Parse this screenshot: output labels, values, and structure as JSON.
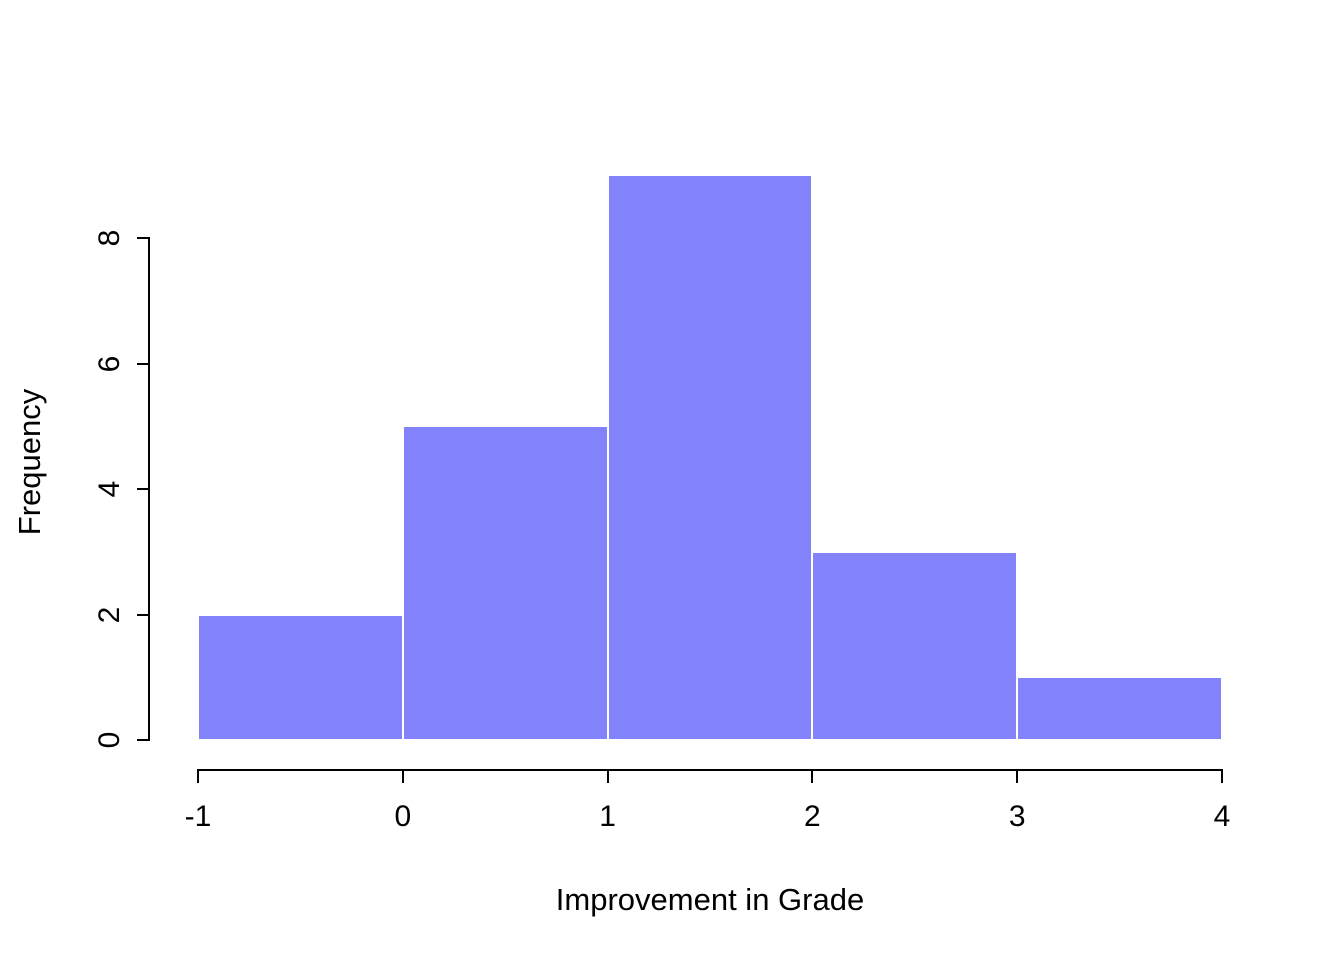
{
  "chart_data": {
    "type": "bar",
    "subtype": "histogram",
    "title": "",
    "xlabel": "Improvement in Grade",
    "ylabel": "Frequency",
    "bin_edges": [
      -1,
      0,
      1,
      2,
      3,
      4
    ],
    "bins": [
      {
        "from": -1,
        "to": 0,
        "count": 2
      },
      {
        "from": 0,
        "to": 1,
        "count": 5
      },
      {
        "from": 1,
        "to": 2,
        "count": 9
      },
      {
        "from": 2,
        "to": 3,
        "count": 3
      },
      {
        "from": 3,
        "to": 4,
        "count": 1
      }
    ],
    "values": [
      2,
      5,
      9,
      3,
      1
    ],
    "x_ticks": [
      -1,
      0,
      1,
      2,
      3,
      4
    ],
    "y_ticks": [
      0,
      2,
      4,
      6,
      8
    ],
    "xlim": [
      -1,
      4
    ],
    "ylim": [
      0,
      9
    ],
    "grid": false,
    "legend": "none",
    "bar_color": "#8282fa",
    "bar_border_color": "#ffffff",
    "axis_color": "#000000",
    "background_color": "#ffffff"
  }
}
